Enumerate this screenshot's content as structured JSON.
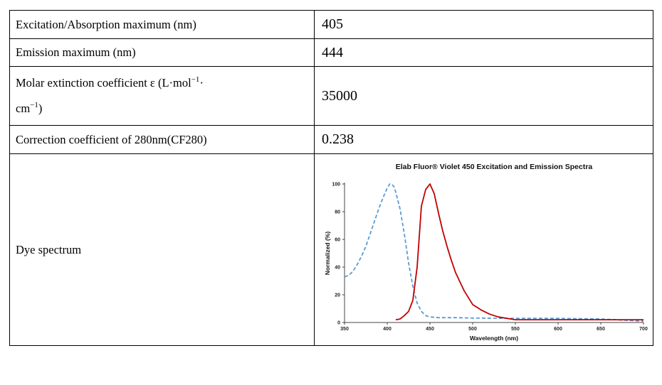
{
  "rows": [
    {
      "label": "Excitation/Absorption maximum (nm)",
      "value": "405"
    },
    {
      "label": "Emission maximum (nm)",
      "value": "444"
    },
    {
      "label_parts": [
        "Molar extinction coefficient ε (L·mol",
        "−1",
        "·",
        "cm",
        "−1",
        ")"
      ],
      "value": "35000"
    },
    {
      "label": "Correction coefficient of 280nm(CF280)",
      "value": "0.238"
    },
    {
      "label": "Dye spectrum"
    }
  ],
  "chart_data": {
    "type": "line",
    "title": "Elab Fluor® Violet 450 Excitation and Emission Spectra",
    "xlabel": "Wavelength (nm)",
    "ylabel": "Normalized (%)",
    "xlim": [
      350,
      700
    ],
    "ylim": [
      0,
      100
    ],
    "xticks": [
      "350",
      "400",
      "450",
      "500",
      "550",
      "600",
      "650",
      "700"
    ],
    "yticks": [
      "0",
      "20",
      "40",
      "60",
      "80",
      "100"
    ],
    "grid": false,
    "colors": {
      "excitation": "#5b9bd5",
      "emission": "#c00000"
    },
    "series": [
      {
        "style": "dashed",
        "color": "#5b9bd5",
        "x": [
          350,
          355,
          360,
          365,
          370,
          375,
          380,
          385,
          390,
          395,
          400,
          403,
          405,
          408,
          410,
          415,
          420,
          425,
          430,
          435,
          440,
          445,
          450,
          460,
          470,
          480,
          500,
          550,
          600,
          650,
          700
        ],
        "y": [
          33,
          34,
          37,
          42,
          48,
          55,
          64,
          73,
          82,
          90,
          97,
          100,
          100,
          98,
          94,
          82,
          64,
          43,
          26,
          14,
          8,
          5,
          4,
          3.5,
          3.5,
          3.5,
          3.2,
          3,
          3,
          2.5,
          1
        ]
      },
      {
        "style": "solid",
        "color": "#c00000",
        "x": [
          410,
          415,
          420,
          425,
          430,
          435,
          440,
          445,
          450,
          455,
          460,
          465,
          470,
          475,
          480,
          490,
          500,
          510,
          520,
          530,
          550,
          575,
          600,
          650,
          700
        ],
        "y": [
          2,
          2.5,
          5,
          8,
          16,
          40,
          84,
          96,
          100,
          93,
          79,
          66,
          55,
          45,
          36,
          23,
          13,
          9,
          6,
          4,
          2,
          2,
          2,
          2,
          2
        ]
      }
    ]
  }
}
